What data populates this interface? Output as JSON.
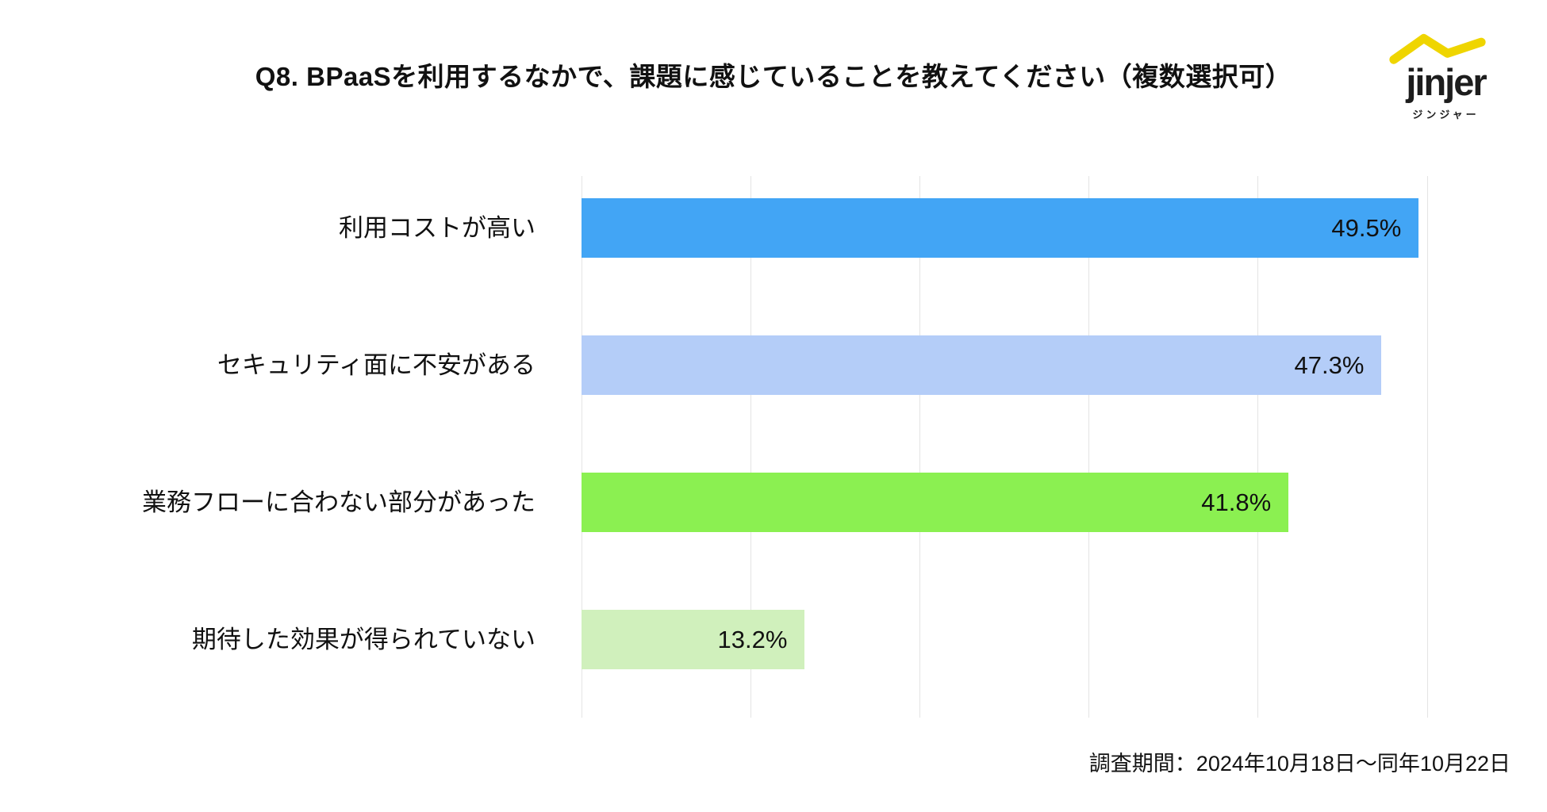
{
  "header": {
    "title": "Q8. BPaaSを利用するなかで、課題に感じていることを教えてください（複数選択可）"
  },
  "logo": {
    "wordmark": "jinjer",
    "subtext": "ジンジャー",
    "swoosh_color": "#efd500",
    "text_color": "#1d1d1d"
  },
  "footer": {
    "note": "調査期間：2024年10月18日〜同年10月22日"
  },
  "chart_data": {
    "type": "bar",
    "orientation": "horizontal",
    "title": "Q8. BPaaSを利用するなかで、課題に感じていることを教えてください（複数選択可）",
    "categories": [
      "利用コストが高い",
      "セキュリティ面に不安がある",
      "業務フローに合わない部分があった",
      "期待した効果が得られていない"
    ],
    "values": [
      49.5,
      47.3,
      41.8,
      13.2
    ],
    "value_labels": [
      "49.5%",
      "47.3%",
      "41.8%",
      "13.2%"
    ],
    "bar_colors": [
      "#42a5f5",
      "#b4cdf8",
      "#8bf051",
      "#d0f0bc"
    ],
    "xlabel": "",
    "ylabel": "",
    "xlim": [
      0,
      50
    ],
    "gridline_interval": 10,
    "grid": "vertical-only",
    "gridline_color": "#e4e4e4",
    "legend": "none",
    "value_label_position": "inside-end",
    "background": "#ffffff"
  }
}
